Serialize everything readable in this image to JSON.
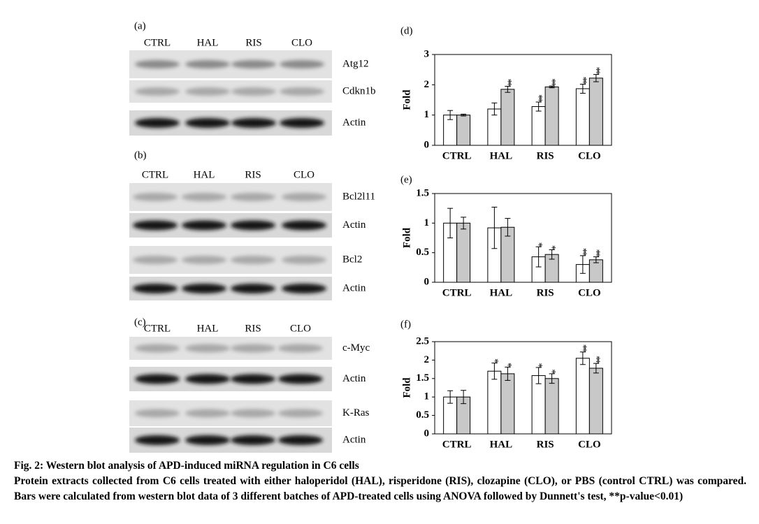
{
  "blots": [
    {
      "label": "(a)",
      "lanes": [
        "CTRL",
        "HAL",
        "RIS",
        "CLO"
      ],
      "rows": [
        "Atg12",
        "Cdkn1b",
        "Actin"
      ]
    },
    {
      "label": "(b)",
      "lanes": [
        "CTRL",
        "HAL",
        "RIS",
        "CLO"
      ],
      "rows": [
        "Bcl2l11",
        "Actin",
        "Bcl2",
        "Actin"
      ]
    },
    {
      "label": "(c)",
      "lanes": [
        "CTRL",
        "HAL",
        "RIS",
        "CLO"
      ],
      "rows": [
        "c-Myc",
        "Actin",
        "K-Ras",
        "Actin"
      ]
    }
  ],
  "chart_data": [
    {
      "type": "bar",
      "panel": "(d)",
      "ylabel": "Fold",
      "categories": [
        "CTRL",
        "HAL",
        "RIS",
        "CLO"
      ],
      "ylim": [
        0,
        3
      ],
      "yticks": [
        0,
        1,
        2,
        3
      ],
      "series": [
        {
          "color": "#ffffff",
          "values": [
            1.0,
            1.2,
            1.28,
            1.87
          ],
          "errors": [
            0.15,
            0.2,
            0.15,
            0.15
          ],
          "annotations": [
            null,
            null,
            "**",
            "**"
          ]
        },
        {
          "color": "#c8c8c8",
          "values": [
            1.0,
            1.85,
            1.93,
            2.22
          ],
          "errors": [
            0.03,
            0.1,
            0.03,
            0.12
          ],
          "annotations": [
            null,
            "**",
            "**",
            "**"
          ]
        }
      ]
    },
    {
      "type": "bar",
      "panel": "(e)",
      "ylabel": "Fold",
      "categories": [
        "CTRL",
        "HAL",
        "RIS",
        "CLO"
      ],
      "ylim": [
        0,
        1.5
      ],
      "yticks": [
        0,
        0.5,
        1,
        1.5
      ],
      "series": [
        {
          "color": "#ffffff",
          "values": [
            1.0,
            0.92,
            0.43,
            0.3
          ],
          "errors": [
            0.25,
            0.35,
            0.17,
            0.15
          ],
          "annotations": [
            null,
            null,
            "*",
            "**"
          ]
        },
        {
          "color": "#c8c8c8",
          "values": [
            1.0,
            0.93,
            0.47,
            0.38
          ],
          "errors": [
            0.1,
            0.15,
            0.08,
            0.05
          ],
          "annotations": [
            null,
            null,
            "*",
            "**"
          ]
        }
      ]
    },
    {
      "type": "bar",
      "panel": "(f)",
      "ylabel": "Fold",
      "categories": [
        "CTRL",
        "HAL",
        "RIS",
        "CLO"
      ],
      "ylim": [
        0,
        2.5
      ],
      "yticks": [
        0,
        0.5,
        1,
        1.5,
        2,
        2.5
      ],
      "series": [
        {
          "color": "#ffffff",
          "values": [
            1.0,
            1.7,
            1.58,
            2.05
          ],
          "errors": [
            0.17,
            0.22,
            0.22,
            0.17
          ],
          "annotations": [
            null,
            "*",
            "*",
            "**"
          ]
        },
        {
          "color": "#c8c8c8",
          "values": [
            1.0,
            1.63,
            1.5,
            1.78
          ],
          "errors": [
            0.18,
            0.18,
            0.13,
            0.13
          ],
          "annotations": [
            null,
            "*",
            "*",
            "**"
          ]
        }
      ]
    }
  ],
  "caption": {
    "title": "Fig. 2: Western blot analysis of APD-induced miRNA regulation in C6 cells",
    "text": "Protein extracts collected from C6 cells treated with either haloperidol (HAL), risperidone (RIS), clozapine (CLO), or PBS (control CTRL) was compared. Bars were calculated from western blot data of 3 different batches of APD-treated cells using ANOVA followed by Dunnett's test, **p-value<0.01)"
  }
}
